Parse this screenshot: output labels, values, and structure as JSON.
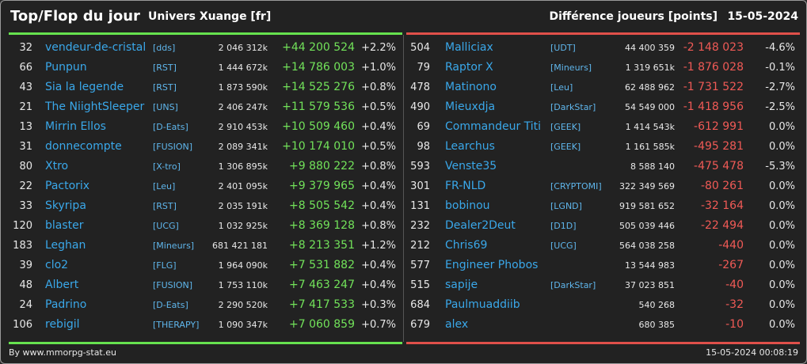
{
  "header": {
    "title": "Top/Flop du jour",
    "subtitle": "Univers Xuange [fr]",
    "metric": "Différence joueurs [points]",
    "date": "15-05-2024"
  },
  "colors": {
    "top": "#66e24f",
    "flop": "#e0504a",
    "name": "#3aa8ea"
  },
  "top": [
    {
      "rank": "32",
      "name": "vendeur-de-cristal",
      "ally": "[dds]",
      "points": "2 046 312k",
      "diff": "+44 200 524",
      "pct": "+2.2%"
    },
    {
      "rank": "66",
      "name": "Punpun",
      "ally": "[RST]",
      "points": "1 444 672k",
      "diff": "+14 786 003",
      "pct": "+1.0%"
    },
    {
      "rank": "43",
      "name": "Sia la legende",
      "ally": "[RST]",
      "points": "1 873 590k",
      "diff": "+14 525 276",
      "pct": "+0.8%"
    },
    {
      "rank": "21",
      "name": "The NiightSleeper",
      "ally": "[UNS]",
      "points": "2 406 247k",
      "diff": "+11 579 536",
      "pct": "+0.5%"
    },
    {
      "rank": "13",
      "name": "Mirrin Ellos",
      "ally": "[D-Eats]",
      "points": "2 910 453k",
      "diff": "+10 509 460",
      "pct": "+0.4%"
    },
    {
      "rank": "31",
      "name": "donnecompte",
      "ally": "[FUSION]",
      "points": "2 089 341k",
      "diff": "+10 174 010",
      "pct": "+0.5%"
    },
    {
      "rank": "80",
      "name": "Xtro",
      "ally": "[X-tro]",
      "points": "1 306 895k",
      "diff": "+9 880 222",
      "pct": "+0.8%"
    },
    {
      "rank": "22",
      "name": "Pactorix",
      "ally": "[Leu]",
      "points": "2 401 095k",
      "diff": "+9 379 965",
      "pct": "+0.4%"
    },
    {
      "rank": "33",
      "name": "Skyripa",
      "ally": "[RST]",
      "points": "2 035 191k",
      "diff": "+8 505 542",
      "pct": "+0.4%"
    },
    {
      "rank": "120",
      "name": "blaster",
      "ally": "[UCG]",
      "points": "1 032 925k",
      "diff": "+8 369 128",
      "pct": "+0.8%"
    },
    {
      "rank": "183",
      "name": "Leghan",
      "ally": "[Mineurs]",
      "points": "681 421 181",
      "diff": "+8 213 351",
      "pct": "+1.2%"
    },
    {
      "rank": "39",
      "name": "clo2",
      "ally": "[FLG]",
      "points": "1 964 090k",
      "diff": "+7 531 882",
      "pct": "+0.4%"
    },
    {
      "rank": "48",
      "name": "Albert",
      "ally": "[FUSION]",
      "points": "1 753 110k",
      "diff": "+7 463 247",
      "pct": "+0.4%"
    },
    {
      "rank": "24",
      "name": "Padrino",
      "ally": "[D-Eats]",
      "points": "2 290 520k",
      "diff": "+7 417 533",
      "pct": "+0.3%"
    },
    {
      "rank": "106",
      "name": "rebigil",
      "ally": "[THERAPY]",
      "points": "1 090 347k",
      "diff": "+7 060 859",
      "pct": "+0.7%"
    }
  ],
  "flop": [
    {
      "rank": "504",
      "name": "Malliciax",
      "ally": "[UDT]",
      "points": "44 400 359",
      "diff": "-2 148 023",
      "pct": "-4.6%"
    },
    {
      "rank": "79",
      "name": "Raptor X",
      "ally": "[Mineurs]",
      "points": "1 319 651k",
      "diff": "-1 876 028",
      "pct": "-0.1%"
    },
    {
      "rank": "478",
      "name": "Matinono",
      "ally": "[Leu]",
      "points": "62 488 962",
      "diff": "-1 731 522",
      "pct": "-2.7%"
    },
    {
      "rank": "490",
      "name": "Mieuxdja",
      "ally": "[DarkStar]",
      "points": "54 549 000",
      "diff": "-1 418 956",
      "pct": "-2.5%"
    },
    {
      "rank": "69",
      "name": "Commandeur Titi",
      "ally": "[GEEK]",
      "points": "1 414 543k",
      "diff": "-612 991",
      "pct": "0.0%"
    },
    {
      "rank": "98",
      "name": "Learchus",
      "ally": "[GEEK]",
      "points": "1 161 585k",
      "diff": "-495 281",
      "pct": "0.0%"
    },
    {
      "rank": "593",
      "name": "Venste35",
      "ally": "",
      "points": "8 588 140",
      "diff": "-475 478",
      "pct": "-5.3%"
    },
    {
      "rank": "301",
      "name": "FR-NLD",
      "ally": "[CRYPTOMI]",
      "points": "322 349 569",
      "diff": "-80 261",
      "pct": "0.0%"
    },
    {
      "rank": "131",
      "name": "bobinou",
      "ally": "[LGND]",
      "points": "919 581 652",
      "diff": "-32 164",
      "pct": "0.0%"
    },
    {
      "rank": "232",
      "name": "Dealer2Deut",
      "ally": "[D1D]",
      "points": "505 039 446",
      "diff": "-22 494",
      "pct": "0.0%"
    },
    {
      "rank": "212",
      "name": "Chris69",
      "ally": "[UCG]",
      "points": "564 038 258",
      "diff": "-440",
      "pct": "0.0%"
    },
    {
      "rank": "577",
      "name": "Engineer Phobos",
      "ally": "",
      "points": "13 544 983",
      "diff": "-267",
      "pct": "0.0%"
    },
    {
      "rank": "515",
      "name": "sapije",
      "ally": "[DarkStar]",
      "points": "37 023 851",
      "diff": "-40",
      "pct": "0.0%"
    },
    {
      "rank": "684",
      "name": "Paulmuaddiib",
      "ally": "",
      "points": "540 268",
      "diff": "-32",
      "pct": "0.0%"
    },
    {
      "rank": "679",
      "name": "alex",
      "ally": "",
      "points": "680 385",
      "diff": "-10",
      "pct": "0.0%"
    }
  ],
  "footer": {
    "credit": "By www.mmorpg-stat.eu",
    "timestamp": "15-05-2024 00:08:19"
  }
}
